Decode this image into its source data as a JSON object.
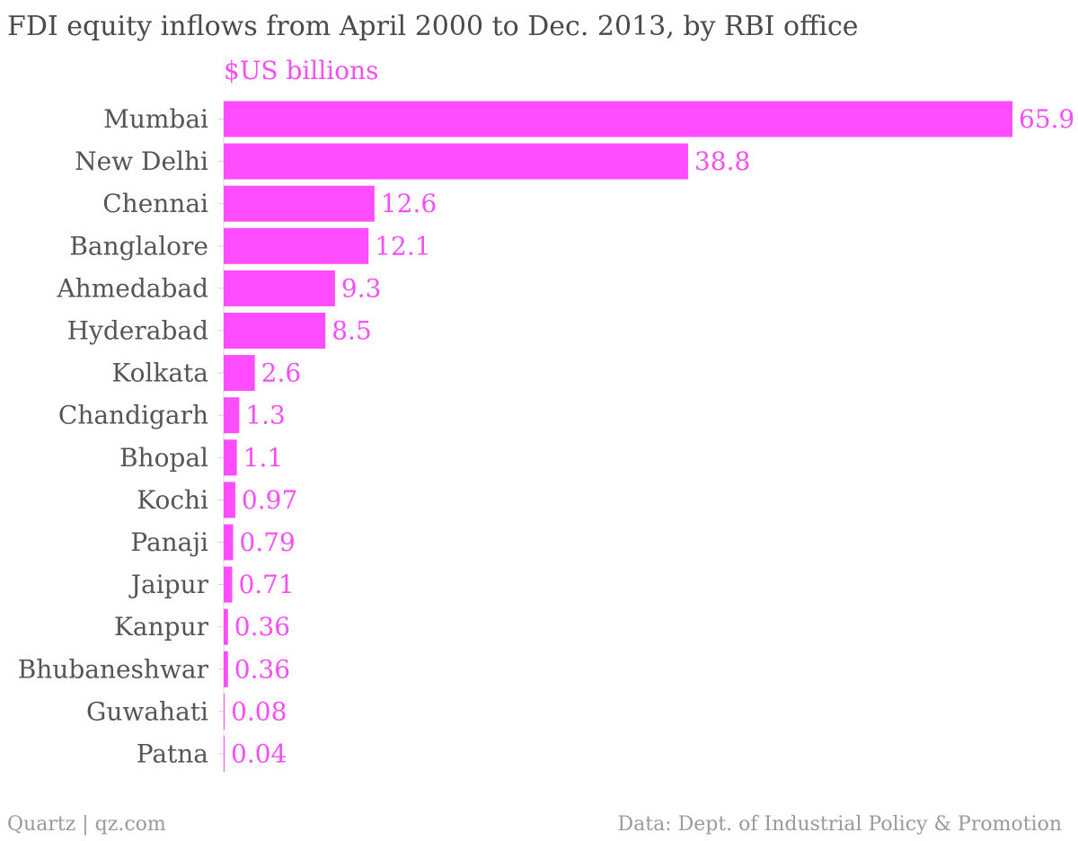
{
  "chart_data": {
    "type": "bar",
    "orientation": "horizontal",
    "title": "FDI equity inflows from April 2000 to Dec. 2013, by RBI office",
    "unit_label": "$US billions",
    "categories": [
      "Mumbai",
      "New Delhi",
      "Chennai",
      "Banglalore",
      "Ahmedabad",
      "Hyderabad",
      "Kolkata",
      "Chandigarh",
      "Bhopal",
      "Kochi",
      "Panaji",
      "Jaipur",
      "Kanpur",
      "Bhubaneshwar",
      "Guwahati",
      "Patna"
    ],
    "values": [
      65.9,
      38.8,
      12.6,
      12.1,
      9.3,
      8.5,
      2.6,
      1.3,
      1.1,
      0.97,
      0.79,
      0.71,
      0.36,
      0.36,
      0.08,
      0.04
    ],
    "value_labels": [
      "65.9",
      "38.8",
      "12.6",
      "12.1",
      "9.3",
      "8.5",
      "2.6",
      "1.3",
      "1.1",
      "0.97",
      "0.79",
      "0.71",
      "0.36",
      "0.36",
      "0.08",
      "0.04"
    ],
    "xlim": [
      0,
      65.9
    ],
    "grid": false,
    "legend": "none",
    "colors": {
      "bar": "#ff4cff",
      "value_label": "#f54ff7",
      "category_label": "#555555"
    }
  },
  "footer": {
    "source_left": "Quartz | qz.com",
    "source_right": "Data: Dept. of Industrial Policy & Promotion"
  }
}
